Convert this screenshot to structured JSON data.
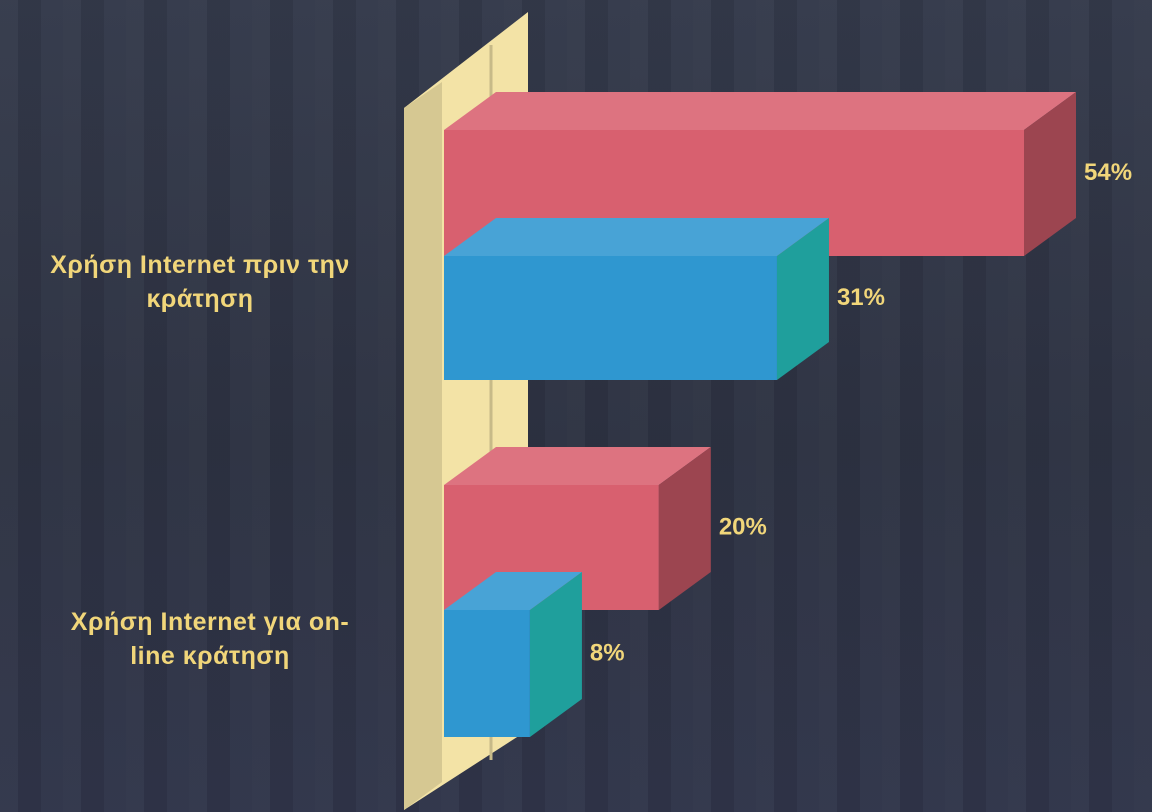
{
  "chart_data": {
    "type": "bar",
    "orientation": "horizontal",
    "style": "3d",
    "categories": [
      "Χρήση Internet πριν την κράτηση",
      "Χρήση Internet για on-line κράτηση"
    ],
    "series": [
      {
        "color": "#d8606f",
        "values": [
          54,
          20
        ]
      },
      {
        "color": "#2f97d0",
        "values": [
          31,
          8
        ]
      }
    ],
    "value_labels": [
      [
        "54%",
        "20%"
      ],
      [
        "31%",
        "8%"
      ]
    ],
    "xlim": [
      0,
      54
    ],
    "grid": false,
    "legend": "none",
    "title": "",
    "xlabel": "",
    "ylabel": ""
  },
  "category_labels": [
    [
      "Χρήση Internet πριν την",
      "κράτηση"
    ],
    [
      "Χρήση Internet για on-",
      "line κράτηση"
    ]
  ],
  "colors": {
    "background": "#2f3444",
    "text": "#f1d67a",
    "axis_wall": "#f3e3a6"
  }
}
